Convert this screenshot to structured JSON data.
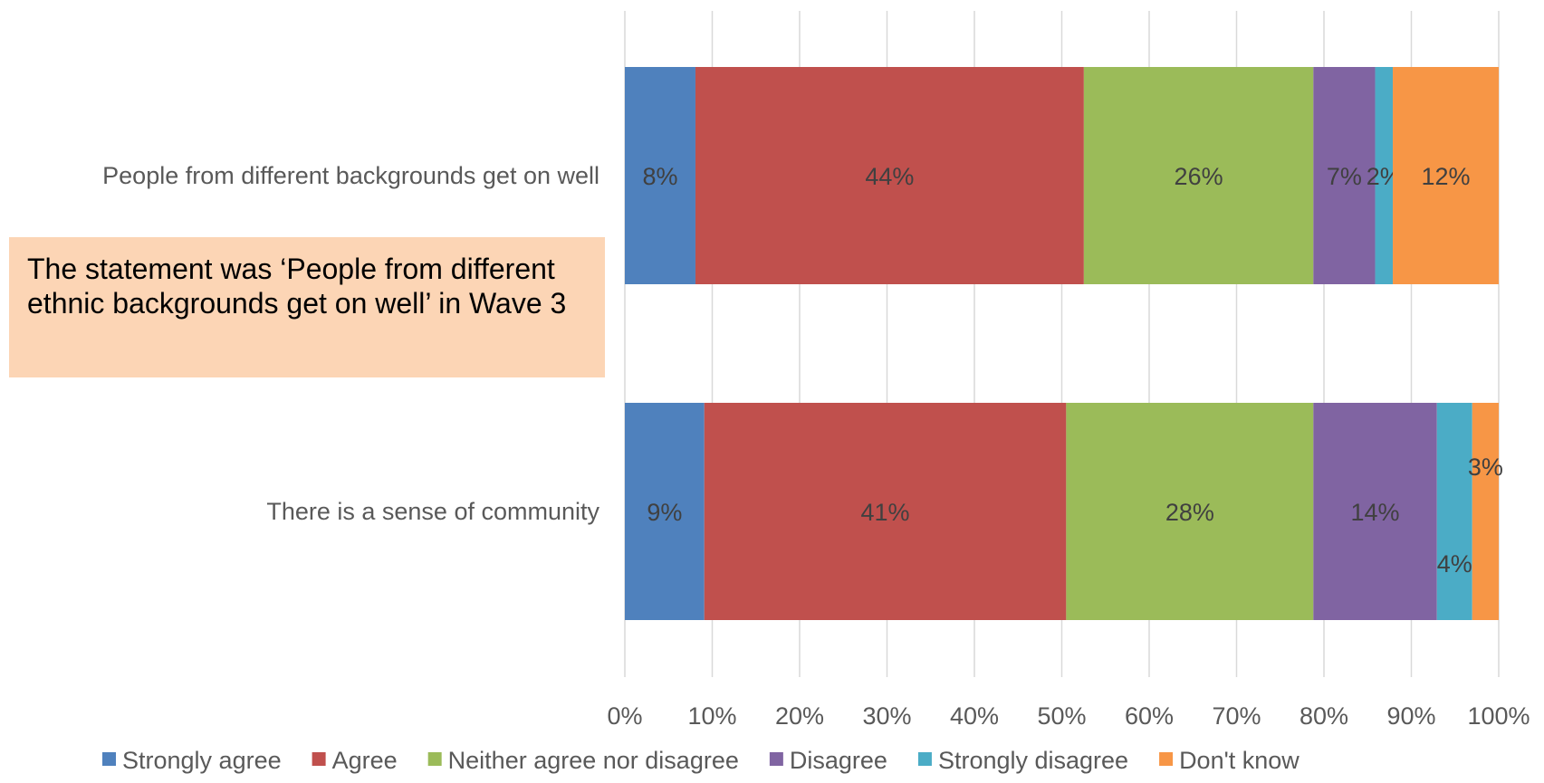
{
  "note": "The statement was ‘People from different ethnic backgrounds get on well’ in Wave 3",
  "chart_data": {
    "type": "bar",
    "orientation": "horizontal",
    "stacked": true,
    "title": "",
    "xlabel": "",
    "ylabel": "",
    "xlim": [
      0,
      100
    ],
    "x_ticks": [
      "0%",
      "10%",
      "20%",
      "30%",
      "40%",
      "50%",
      "60%",
      "70%",
      "80%",
      "90%",
      "100%"
    ],
    "grid": true,
    "legend_position": "bottom",
    "categories": [
      "People from different backgrounds get on well",
      "There is a sense of community"
    ],
    "series": [
      {
        "name": "Strongly agree",
        "color": "#4f81bd",
        "values": [
          8,
          9
        ],
        "labels": [
          "8%",
          "9%"
        ]
      },
      {
        "name": "Agree",
        "color": "#c0504d",
        "values": [
          44,
          41
        ],
        "labels": [
          "44%",
          "41%"
        ]
      },
      {
        "name": "Neither agree nor disagree",
        "color": "#9bbb59",
        "values": [
          26,
          28
        ],
        "labels": [
          "26%",
          "28%"
        ]
      },
      {
        "name": "Disagree",
        "color": "#8064a2",
        "values": [
          7,
          14
        ],
        "labels": [
          "7%",
          "14%"
        ]
      },
      {
        "name": "Strongly disagree",
        "color": "#4bacc6",
        "values": [
          2,
          4
        ],
        "labels": [
          "2%",
          "4%"
        ]
      },
      {
        "name": "Don't know",
        "color": "#f79646",
        "values": [
          12,
          3
        ],
        "labels": [
          "12%",
          "3%"
        ]
      }
    ]
  }
}
